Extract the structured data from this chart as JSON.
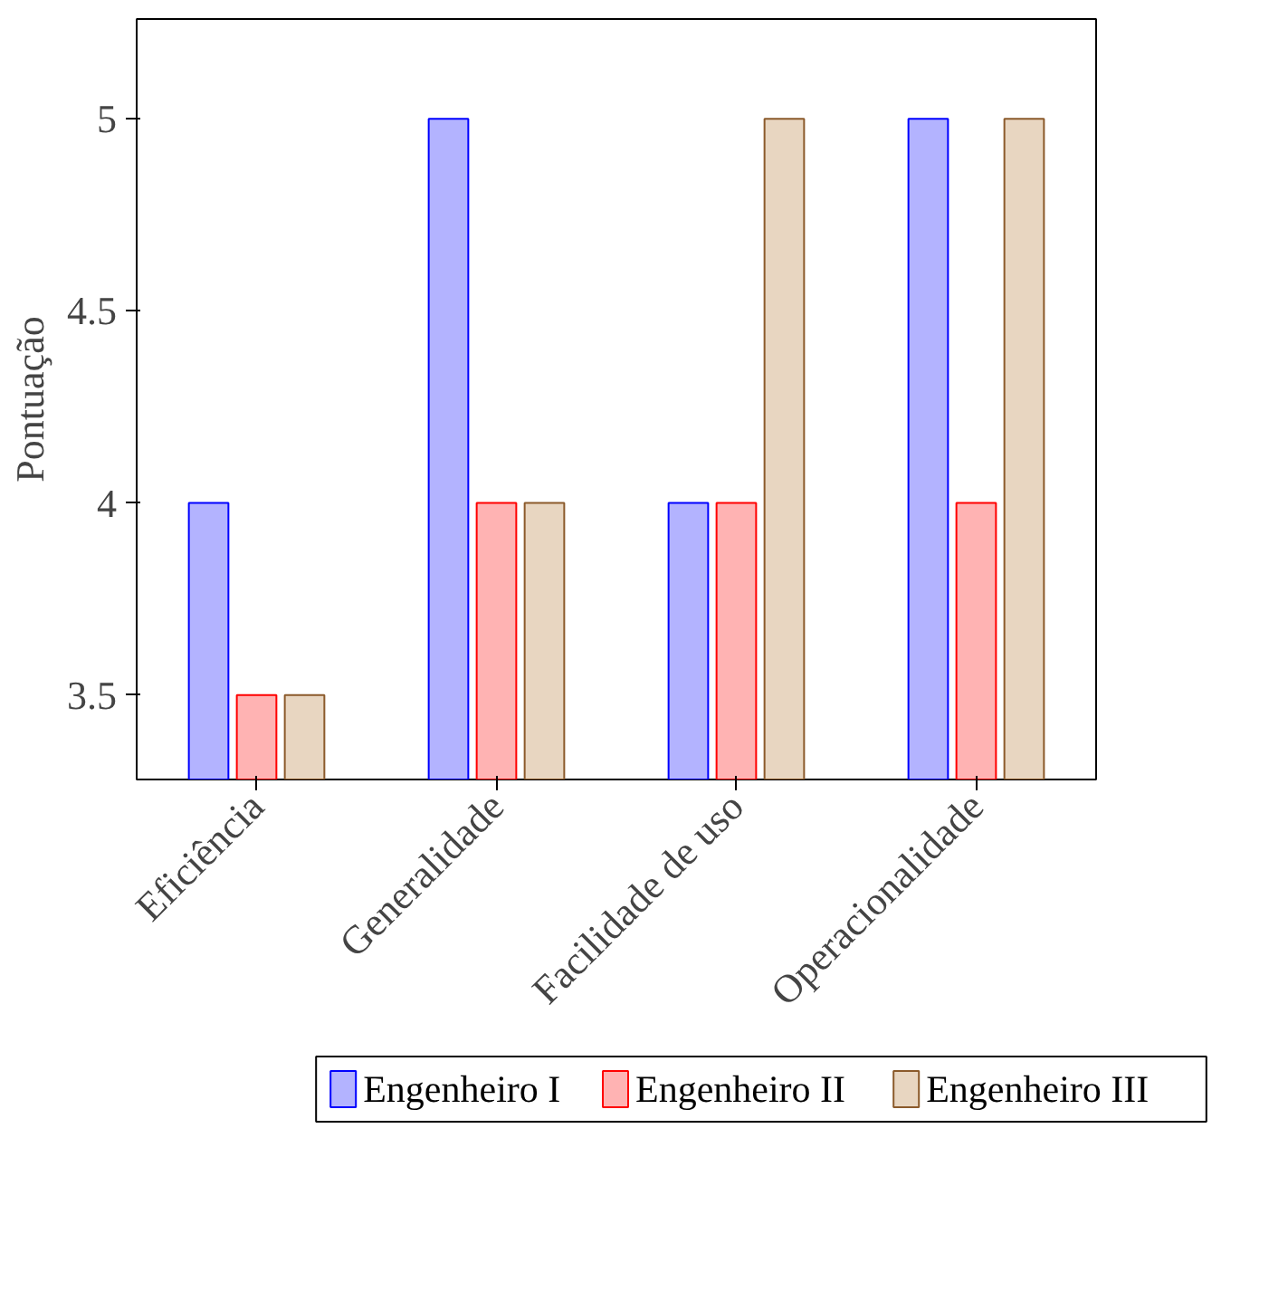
{
  "chart_data": {
    "type": "bar",
    "ylabel": "Pontuação",
    "categories": [
      "Eficiência",
      "Generalidade",
      "Facilidade de uso",
      "Operacionalidade"
    ],
    "series": [
      {
        "name": "Engenheiro I",
        "color": "#b3b3ff",
        "values": [
          4,
          5,
          4,
          5
        ]
      },
      {
        "name": "Engenheiro II",
        "color": "#ffb3b3",
        "values": [
          3.5,
          4,
          4,
          4
        ]
      },
      {
        "name": "Engenheiro III",
        "color": "#e8d6c1",
        "values": [
          3.5,
          4,
          5,
          5
        ]
      }
    ],
    "ylim": [
      3.28,
      5.26
    ],
    "yticks": [
      3.5,
      4,
      4.5,
      5
    ],
    "grid": false,
    "legend": "bottom"
  }
}
